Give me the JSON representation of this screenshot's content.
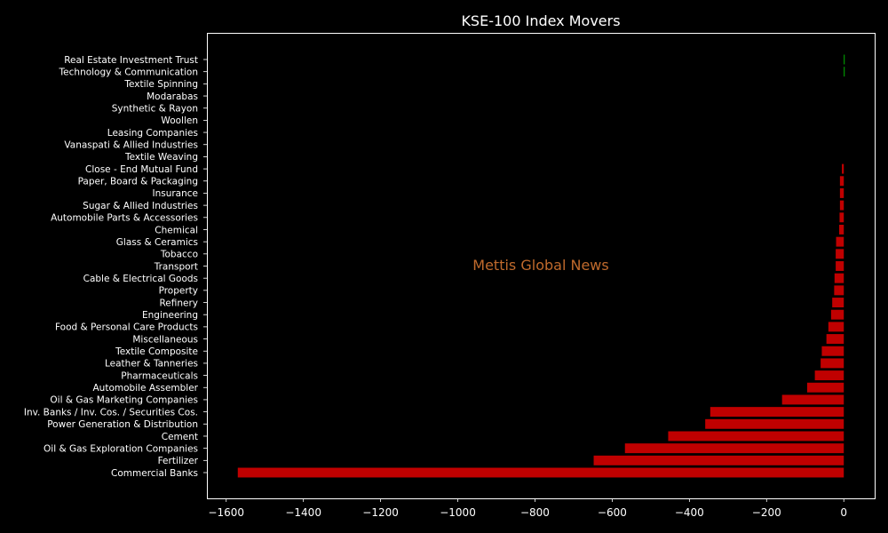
{
  "chart_data": {
    "type": "bar",
    "orientation": "horizontal",
    "title": "KSE-100 Index Movers",
    "xlabel": "",
    "ylabel": "",
    "xlim": [
      -1650,
      80
    ],
    "xticks": [
      -1600,
      -1400,
      -1200,
      -1000,
      -800,
      -600,
      -400,
      -200,
      0
    ],
    "xtick_labels": [
      "−1600",
      "−1400",
      "−1200",
      "−1000",
      "−800",
      "−600",
      "−400",
      "−200",
      "0"
    ],
    "grid": false,
    "colors": {
      "positive": "#00b400",
      "negative": "#c00000",
      "background": "#000000",
      "axes": "#ffffff",
      "watermark": "#c06a2c"
    },
    "watermark": "Mettis Global News",
    "categories": [
      "Commercial Banks",
      "Fertilizer",
      "Oil & Gas Exploration Companies",
      "Cement",
      "Power Generation & Distribution",
      "Inv. Banks / Inv. Cos. / Securities Cos.",
      "Oil & Gas Marketing Companies",
      "Automobile Assembler",
      "Pharmaceuticals",
      "Leather & Tanneries",
      "Textile Composite",
      "Miscellaneous",
      "Food & Personal Care Products",
      "Engineering",
      "Refinery",
      "Property",
      "Cable & Electrical Goods",
      "Transport",
      "Tobacco",
      "Glass & Ceramics",
      "Chemical",
      "Automobile Parts & Accessories",
      "Sugar & Allied Industries",
      "Insurance",
      "Paper, Board & Packaging",
      "Close - End Mutual Fund",
      "Textile Weaving",
      "Vanaspati & Allied Industries",
      "Leasing Companies",
      "Woollen",
      "Synthetic & Rayon",
      "Modarabas",
      "Textile Spinning",
      "Technology & Communication",
      "Real Estate Investment Trust"
    ],
    "values": [
      -1570,
      -648,
      -567,
      -455,
      -359,
      -346,
      -160,
      -95,
      -75,
      -60,
      -57,
      -45,
      -40,
      -33,
      -30,
      -25,
      -24,
      -21,
      -21,
      -20,
      -12,
      -11,
      -10,
      -10,
      -10,
      -5,
      0,
      0,
      0,
      0,
      0,
      0,
      0,
      1,
      2
    ]
  }
}
